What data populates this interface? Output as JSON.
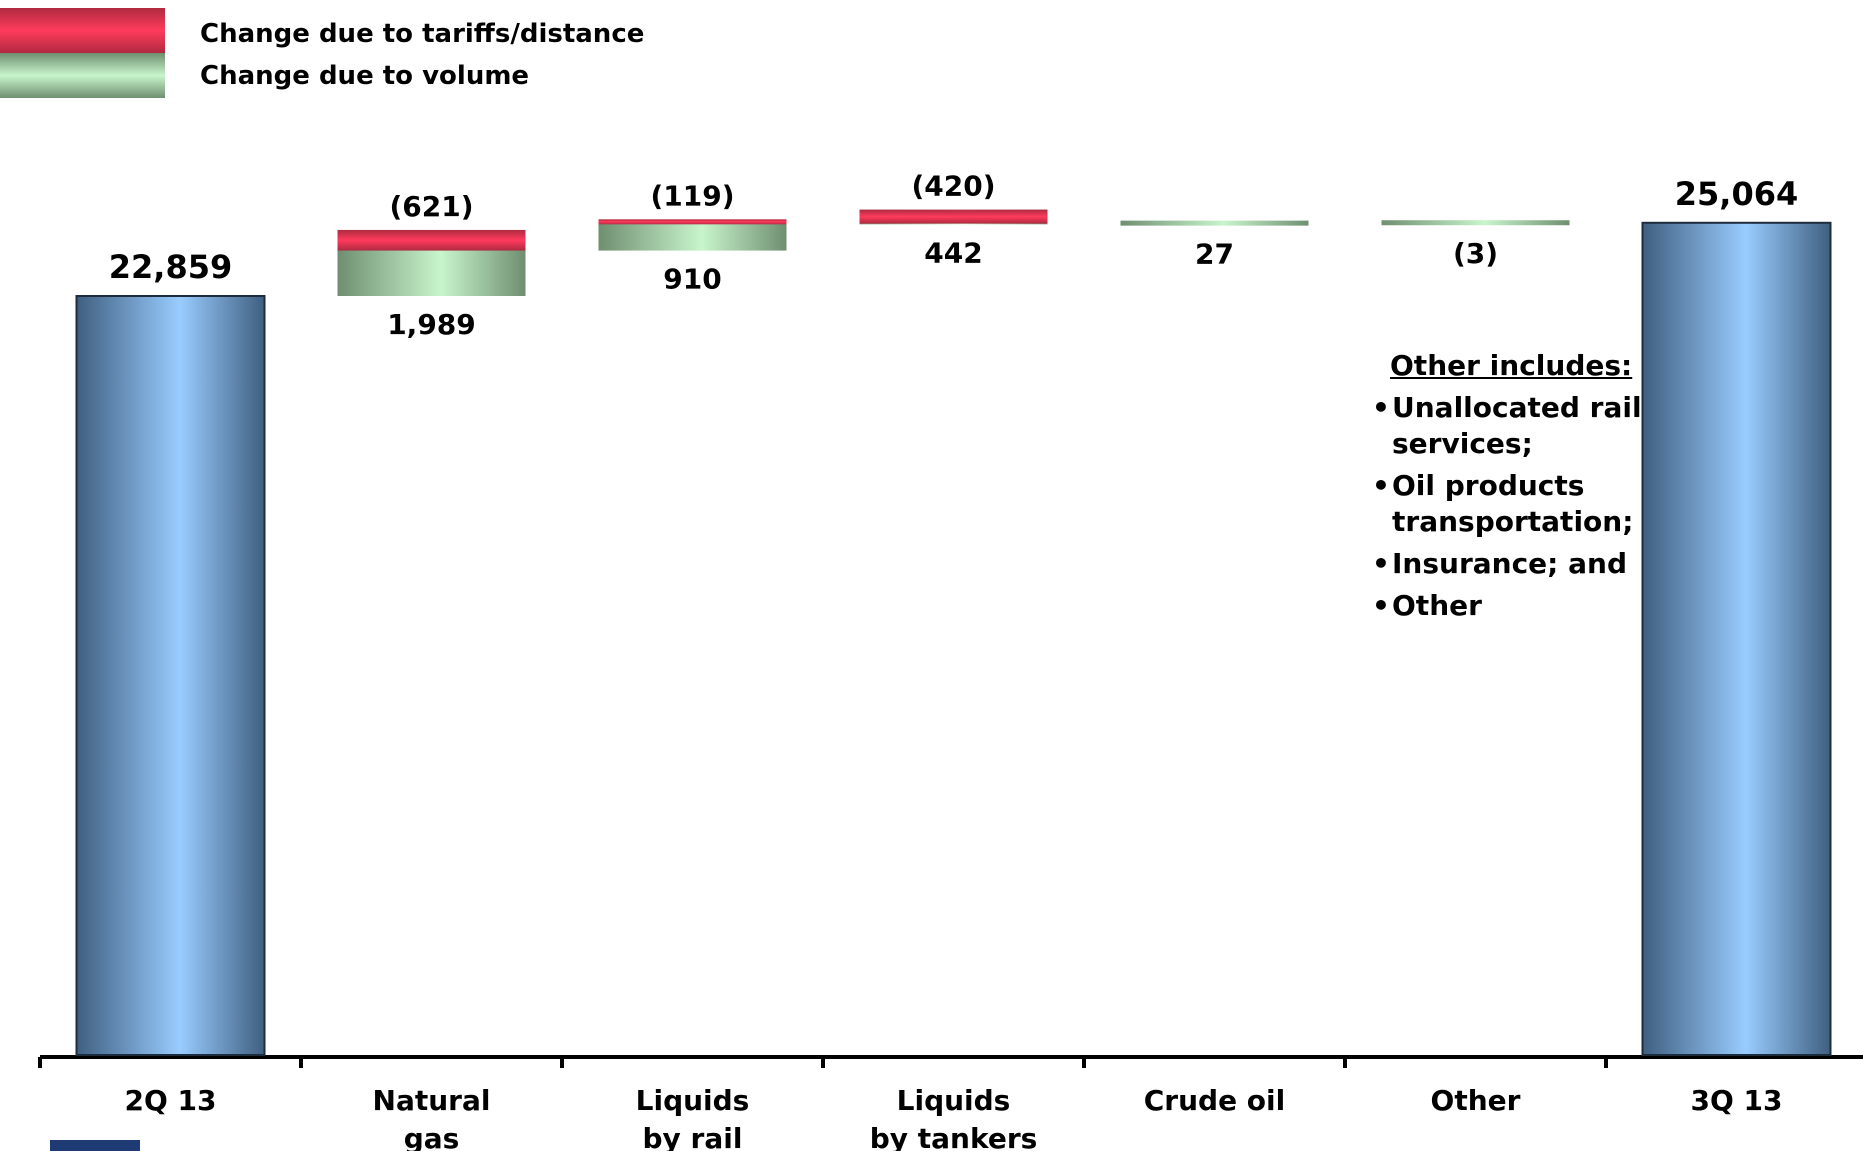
{
  "legend": [
    {
      "label": "Change due to tariffs/distance",
      "color": "#ff3b5c"
    },
    {
      "label": "Change due to volume",
      "color": "#c8f5cc"
    }
  ],
  "note": {
    "title": "Other includes:",
    "items": [
      "Unallocated rail services;",
      "Oil products transportation;",
      "Insurance; and",
      "Other"
    ]
  },
  "colors": {
    "total": "#99ccff",
    "total_dark": "#3f5f80",
    "tariff": "#ff3b5c",
    "volume": "#c8f5cc",
    "volume_dark": "#6f8f70"
  },
  "chart_data": {
    "type": "waterfall",
    "categories": [
      "2Q 13",
      "Natural\ngas",
      "Liquids\nby rail",
      "Liquids\nby tankers",
      "Crude oil",
      "Other",
      "3Q 13"
    ],
    "start": {
      "category": "2Q 13",
      "value": 22859,
      "label": "22,859"
    },
    "end": {
      "category": "3Q 13",
      "value": 25064,
      "label": "25,064"
    },
    "series": [
      {
        "name": "Change due to tariffs/distance",
        "values": [
          null,
          -621,
          -119,
          -420,
          null,
          null,
          null
        ],
        "labels": [
          "",
          "(621)",
          "(119)",
          "(420)",
          "",
          "",
          ""
        ]
      },
      {
        "name": "Change due to volume",
        "values": [
          null,
          1989,
          910,
          442,
          27,
          -3,
          null
        ],
        "labels": [
          "",
          "1,989",
          "910",
          "442",
          "27",
          "(3)",
          ""
        ]
      }
    ],
    "ylim": [
      0,
      25064
    ],
    "grid": false
  }
}
